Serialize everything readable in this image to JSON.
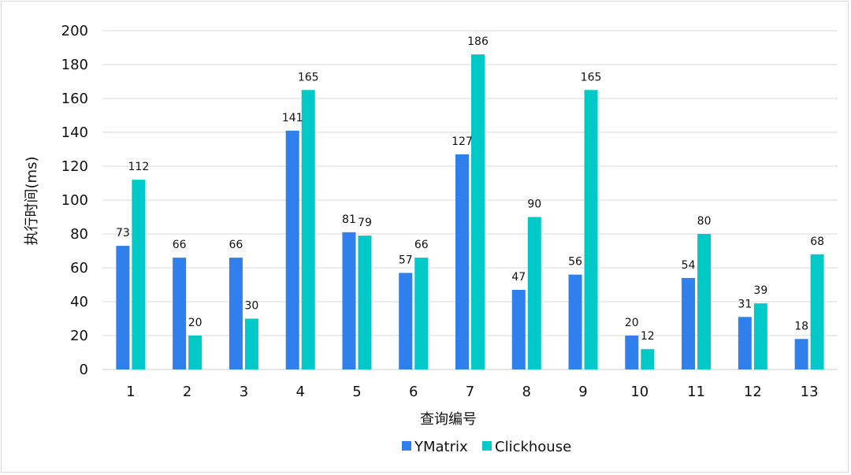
{
  "chart_data": {
    "type": "bar",
    "title": "",
    "categories": [
      "1",
      "2",
      "3",
      "4",
      "5",
      "6",
      "7",
      "8",
      "9",
      "10",
      "11",
      "12",
      "13"
    ],
    "series": [
      {
        "name": "YMatrix",
        "color": "#2f80ed",
        "values": [
          73,
          66,
          66,
          141,
          81,
          57,
          127,
          47,
          56,
          20,
          54,
          31,
          18
        ]
      },
      {
        "name": "Clickhouse",
        "color": "#00c9c8",
        "values": [
          112,
          20,
          30,
          165,
          79,
          66,
          186,
          90,
          165,
          12,
          80,
          39,
          68
        ]
      }
    ],
    "xlabel": "查询编号",
    "ylabel": "执行时间(ms)",
    "ylim": [
      0,
      200
    ],
    "yticks": [
      0,
      20,
      40,
      60,
      80,
      100,
      120,
      140,
      160,
      180,
      200
    ],
    "grid": true,
    "legend_position": "bottom-center"
  }
}
